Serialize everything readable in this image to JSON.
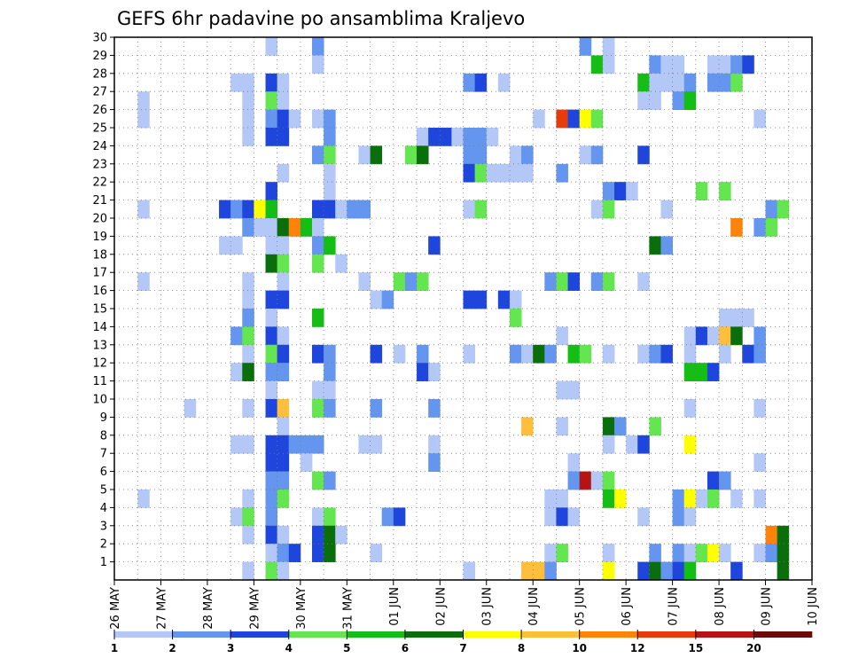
{
  "chart_data": {
    "type": "heatmap",
    "title": "GEFS 6hr padavine po ansamblima Kraljevo",
    "xlabel": "",
    "ylabel": "",
    "x_ticks": [
      "26 MAY",
      "27 MAY",
      "28 MAY",
      "29 MAY",
      "30 MAY",
      "31 MAY",
      "01 JUN",
      "02 JUN",
      "03 JUN",
      "04 JUN",
      "05 JUN",
      "06 JUN",
      "07 JUN",
      "08 JUN",
      "09 JUN",
      "10 JUN"
    ],
    "y_ticks": [
      1,
      2,
      3,
      4,
      5,
      6,
      7,
      8,
      9,
      10,
      11,
      12,
      13,
      14,
      15,
      16,
      17,
      18,
      19,
      20,
      21,
      22,
      23,
      24,
      25,
      26,
      27,
      28,
      29,
      30
    ],
    "members": 30,
    "steps": 60,
    "grid": true,
    "legend": {
      "placement": "bottom",
      "levels": [
        "1",
        "2",
        "3",
        "4",
        "5",
        "6",
        "7",
        "8",
        "10",
        "12",
        "15",
        "20"
      ],
      "colors": [
        "#b4c8f8",
        "#6496f0",
        "#1e46dc",
        "#64e650",
        "#14be14",
        "#0a6e0a",
        "#ffff00",
        "#ffbe3c",
        "#ff820a",
        "#e63c0a",
        "#b41414",
        "#6e0a0a"
      ]
    },
    "cells": [
      [
        30,
        13,
        0
      ],
      [
        30,
        17,
        1
      ],
      [
        30,
        40,
        1
      ],
      [
        30,
        42,
        0
      ],
      [
        29,
        17,
        0
      ],
      [
        29,
        41,
        4
      ],
      [
        29,
        42,
        0
      ],
      [
        29,
        46,
        1
      ],
      [
        29,
        47,
        0
      ],
      [
        29,
        48,
        0
      ],
      [
        29,
        51,
        0
      ],
      [
        29,
        52,
        0
      ],
      [
        29,
        53,
        1
      ],
      [
        29,
        54,
        2
      ],
      [
        28,
        10,
        0
      ],
      [
        28,
        11,
        0
      ],
      [
        28,
        13,
        2
      ],
      [
        28,
        14,
        0
      ],
      [
        28,
        30,
        1
      ],
      [
        28,
        31,
        2
      ],
      [
        28,
        33,
        0
      ],
      [
        28,
        45,
        4
      ],
      [
        28,
        46,
        0
      ],
      [
        28,
        47,
        0
      ],
      [
        28,
        48,
        0
      ],
      [
        28,
        49,
        1
      ],
      [
        28,
        51,
        1
      ],
      [
        28,
        52,
        1
      ],
      [
        28,
        53,
        3
      ],
      [
        27,
        2,
        0
      ],
      [
        27,
        11,
        0
      ],
      [
        27,
        13,
        3
      ],
      [
        27,
        14,
        0
      ],
      [
        27,
        45,
        0
      ],
      [
        27,
        46,
        0
      ],
      [
        27,
        48,
        1
      ],
      [
        27,
        49,
        4
      ],
      [
        26,
        2,
        0
      ],
      [
        26,
        11,
        0
      ],
      [
        26,
        13,
        1
      ],
      [
        26,
        14,
        2
      ],
      [
        26,
        15,
        0
      ],
      [
        26,
        17,
        0
      ],
      [
        26,
        18,
        1
      ],
      [
        26,
        36,
        0
      ],
      [
        26,
        38,
        9
      ],
      [
        26,
        39,
        2
      ],
      [
        26,
        40,
        6
      ],
      [
        26,
        41,
        3
      ],
      [
        26,
        55,
        0
      ],
      [
        25,
        11,
        0
      ],
      [
        25,
        13,
        2
      ],
      [
        25,
        14,
        2
      ],
      [
        25,
        18,
        1
      ],
      [
        25,
        26,
        0
      ],
      [
        25,
        27,
        2
      ],
      [
        25,
        28,
        2
      ],
      [
        25,
        29,
        0
      ],
      [
        25,
        30,
        1
      ],
      [
        25,
        31,
        1
      ],
      [
        25,
        32,
        0
      ],
      [
        24,
        17,
        1
      ],
      [
        24,
        18,
        3
      ],
      [
        24,
        21,
        0
      ],
      [
        24,
        22,
        5
      ],
      [
        24,
        25,
        3
      ],
      [
        24,
        26,
        5
      ],
      [
        24,
        30,
        1
      ],
      [
        24,
        31,
        1
      ],
      [
        24,
        34,
        0
      ],
      [
        24,
        35,
        1
      ],
      [
        24,
        40,
        0
      ],
      [
        24,
        41,
        1
      ],
      [
        24,
        45,
        2
      ],
      [
        23,
        14,
        0
      ],
      [
        23,
        18,
        0
      ],
      [
        23,
        30,
        2
      ],
      [
        23,
        31,
        3
      ],
      [
        23,
        32,
        0
      ],
      [
        23,
        33,
        0
      ],
      [
        23,
        34,
        0
      ],
      [
        23,
        35,
        0
      ],
      [
        23,
        38,
        1
      ],
      [
        22,
        13,
        2
      ],
      [
        22,
        18,
        0
      ],
      [
        22,
        42,
        1
      ],
      [
        22,
        43,
        2
      ],
      [
        22,
        44,
        0
      ],
      [
        22,
        50,
        3
      ],
      [
        22,
        52,
        3
      ],
      [
        21,
        2,
        0
      ],
      [
        21,
        9,
        2
      ],
      [
        21,
        10,
        1
      ],
      [
        21,
        11,
        2
      ],
      [
        21,
        12,
        6
      ],
      [
        21,
        13,
        4
      ],
      [
        21,
        17,
        2
      ],
      [
        21,
        18,
        2
      ],
      [
        21,
        19,
        0
      ],
      [
        21,
        20,
        1
      ],
      [
        21,
        21,
        1
      ],
      [
        21,
        30,
        0
      ],
      [
        21,
        31,
        3
      ],
      [
        21,
        41,
        0
      ],
      [
        21,
        42,
        3
      ],
      [
        21,
        47,
        0
      ],
      [
        21,
        56,
        1
      ],
      [
        21,
        57,
        3
      ],
      [
        20,
        11,
        1
      ],
      [
        20,
        12,
        0
      ],
      [
        20,
        13,
        0
      ],
      [
        20,
        14,
        5
      ],
      [
        20,
        15,
        8
      ],
      [
        20,
        16,
        4
      ],
      [
        20,
        17,
        0
      ],
      [
        20,
        53,
        8
      ],
      [
        20,
        55,
        1
      ],
      [
        20,
        56,
        3
      ],
      [
        19,
        9,
        0
      ],
      [
        19,
        10,
        0
      ],
      [
        19,
        13,
        0
      ],
      [
        19,
        14,
        0
      ],
      [
        19,
        17,
        1
      ],
      [
        19,
        18,
        4
      ],
      [
        19,
        27,
        2
      ],
      [
        19,
        46,
        5
      ],
      [
        19,
        47,
        1
      ],
      [
        18,
        13,
        5
      ],
      [
        18,
        14,
        3
      ],
      [
        18,
        17,
        3
      ],
      [
        18,
        19,
        0
      ],
      [
        17,
        2,
        0
      ],
      [
        17,
        11,
        0
      ],
      [
        17,
        14,
        0
      ],
      [
        17,
        21,
        0
      ],
      [
        17,
        24,
        3
      ],
      [
        17,
        25,
        1
      ],
      [
        17,
        26,
        3
      ],
      [
        17,
        37,
        1
      ],
      [
        17,
        38,
        3
      ],
      [
        17,
        39,
        2
      ],
      [
        17,
        41,
        1
      ],
      [
        17,
        42,
        3
      ],
      [
        17,
        45,
        0
      ],
      [
        16,
        11,
        0
      ],
      [
        16,
        13,
        2
      ],
      [
        16,
        14,
        2
      ],
      [
        16,
        22,
        0
      ],
      [
        16,
        23,
        1
      ],
      [
        16,
        30,
        2
      ],
      [
        16,
        31,
        2
      ],
      [
        16,
        33,
        2
      ],
      [
        16,
        34,
        0
      ],
      [
        15,
        11,
        1
      ],
      [
        15,
        13,
        0
      ],
      [
        15,
        17,
        4
      ],
      [
        15,
        34,
        3
      ],
      [
        15,
        52,
        0
      ],
      [
        15,
        53,
        0
      ],
      [
        15,
        54,
        0
      ],
      [
        14,
        10,
        1
      ],
      [
        14,
        11,
        3
      ],
      [
        14,
        13,
        2
      ],
      [
        14,
        14,
        0
      ],
      [
        14,
        38,
        0
      ],
      [
        14,
        49,
        0
      ],
      [
        14,
        50,
        2
      ],
      [
        14,
        51,
        0
      ],
      [
        14,
        52,
        7
      ],
      [
        14,
        53,
        5
      ],
      [
        14,
        55,
        1
      ],
      [
        13,
        11,
        0
      ],
      [
        13,
        13,
        3
      ],
      [
        13,
        14,
        2
      ],
      [
        13,
        17,
        2
      ],
      [
        13,
        18,
        1
      ],
      [
        13,
        22,
        2
      ],
      [
        13,
        24,
        0
      ],
      [
        13,
        26,
        1
      ],
      [
        13,
        30,
        0
      ],
      [
        13,
        34,
        1
      ],
      [
        13,
        35,
        0
      ],
      [
        13,
        36,
        5
      ],
      [
        13,
        37,
        1
      ],
      [
        13,
        39,
        4
      ],
      [
        13,
        40,
        3
      ],
      [
        13,
        42,
        0
      ],
      [
        13,
        45,
        0
      ],
      [
        13,
        46,
        1
      ],
      [
        13,
        47,
        2
      ],
      [
        13,
        49,
        0
      ],
      [
        13,
        52,
        0
      ],
      [
        13,
        54,
        2
      ],
      [
        13,
        55,
        1
      ],
      [
        12,
        10,
        0
      ],
      [
        12,
        11,
        5
      ],
      [
        12,
        13,
        1
      ],
      [
        12,
        14,
        1
      ],
      [
        12,
        18,
        1
      ],
      [
        12,
        26,
        2
      ],
      [
        12,
        27,
        0
      ],
      [
        12,
        49,
        4
      ],
      [
        12,
        50,
        4
      ],
      [
        12,
        51,
        2
      ],
      [
        11,
        13,
        0
      ],
      [
        11,
        17,
        0
      ],
      [
        11,
        18,
        0
      ],
      [
        11,
        38,
        0
      ],
      [
        11,
        39,
        0
      ],
      [
        10,
        6,
        0
      ],
      [
        10,
        11,
        0
      ],
      [
        10,
        13,
        2
      ],
      [
        10,
        14,
        7
      ],
      [
        10,
        17,
        3
      ],
      [
        10,
        18,
        1
      ],
      [
        10,
        22,
        1
      ],
      [
        10,
        27,
        1
      ],
      [
        10,
        49,
        0
      ],
      [
        10,
        55,
        0
      ],
      [
        9,
        14,
        0
      ],
      [
        9,
        35,
        7
      ],
      [
        9,
        38,
        0
      ],
      [
        9,
        42,
        5
      ],
      [
        9,
        43,
        1
      ],
      [
        9,
        46,
        3
      ],
      [
        8,
        10,
        0
      ],
      [
        8,
        11,
        0
      ],
      [
        8,
        13,
        2
      ],
      [
        8,
        14,
        2
      ],
      [
        8,
        15,
        1
      ],
      [
        8,
        16,
        1
      ],
      [
        8,
        17,
        1
      ],
      [
        8,
        21,
        0
      ],
      [
        8,
        22,
        0
      ],
      [
        8,
        27,
        0
      ],
      [
        8,
        42,
        0
      ],
      [
        8,
        44,
        0
      ],
      [
        8,
        45,
        2
      ],
      [
        8,
        49,
        6
      ],
      [
        7,
        13,
        2
      ],
      [
        7,
        14,
        2
      ],
      [
        7,
        16,
        0
      ],
      [
        7,
        27,
        1
      ],
      [
        7,
        39,
        0
      ],
      [
        7,
        55,
        0
      ],
      [
        6,
        13,
        1
      ],
      [
        6,
        14,
        1
      ],
      [
        6,
        17,
        3
      ],
      [
        6,
        18,
        1
      ],
      [
        6,
        39,
        1
      ],
      [
        6,
        40,
        10
      ],
      [
        6,
        41,
        0
      ],
      [
        6,
        42,
        3
      ],
      [
        6,
        51,
        2
      ],
      [
        6,
        52,
        1
      ],
      [
        5,
        2,
        0
      ],
      [
        5,
        11,
        0
      ],
      [
        5,
        13,
        1
      ],
      [
        5,
        14,
        3
      ],
      [
        5,
        37,
        0
      ],
      [
        5,
        38,
        0
      ],
      [
        5,
        42,
        4
      ],
      [
        5,
        43,
        6
      ],
      [
        5,
        48,
        1
      ],
      [
        5,
        49,
        6
      ],
      [
        5,
        50,
        0
      ],
      [
        5,
        51,
        3
      ],
      [
        5,
        53,
        0
      ],
      [
        5,
        55,
        0
      ],
      [
        4,
        10,
        0
      ],
      [
        4,
        11,
        3
      ],
      [
        4,
        13,
        1
      ],
      [
        4,
        17,
        0
      ],
      [
        4,
        18,
        3
      ],
      [
        4,
        23,
        1
      ],
      [
        4,
        24,
        2
      ],
      [
        4,
        37,
        0
      ],
      [
        4,
        38,
        2
      ],
      [
        4,
        39,
        0
      ],
      [
        4,
        45,
        0
      ],
      [
        4,
        48,
        1
      ],
      [
        4,
        49,
        0
      ],
      [
        3,
        11,
        0
      ],
      [
        3,
        13,
        2
      ],
      [
        3,
        14,
        0
      ],
      [
        3,
        17,
        2
      ],
      [
        3,
        18,
        5
      ],
      [
        3,
        19,
        0
      ],
      [
        3,
        56,
        8
      ],
      [
        3,
        57,
        5
      ],
      [
        2,
        13,
        0
      ],
      [
        2,
        14,
        1
      ],
      [
        2,
        15,
        2
      ],
      [
        2,
        17,
        2
      ],
      [
        2,
        18,
        5
      ],
      [
        2,
        22,
        0
      ],
      [
        2,
        37,
        0
      ],
      [
        2,
        38,
        3
      ],
      [
        2,
        42,
        0
      ],
      [
        2,
        46,
        1
      ],
      [
        2,
        48,
        1
      ],
      [
        2,
        49,
        0
      ],
      [
        2,
        50,
        3
      ],
      [
        2,
        51,
        6
      ],
      [
        2,
        52,
        0
      ],
      [
        2,
        55,
        0
      ],
      [
        2,
        56,
        1
      ],
      [
        2,
        57,
        5
      ],
      [
        1,
        11,
        0
      ],
      [
        1,
        13,
        3
      ],
      [
        1,
        14,
        0
      ],
      [
        1,
        30,
        0
      ],
      [
        1,
        35,
        7
      ],
      [
        1,
        36,
        7
      ],
      [
        1,
        37,
        1
      ],
      [
        1,
        42,
        6
      ],
      [
        1,
        45,
        2
      ],
      [
        1,
        46,
        5
      ],
      [
        1,
        47,
        1
      ],
      [
        1,
        48,
        2
      ],
      [
        1,
        49,
        4
      ],
      [
        1,
        53,
        2
      ],
      [
        1,
        57,
        5
      ]
    ]
  }
}
